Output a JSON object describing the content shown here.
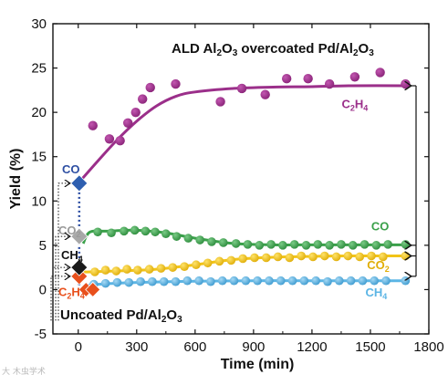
{
  "chart_data": {
    "type": "scatter",
    "title": "ALD Al2O3 overcoated Pd/Al2O3",
    "subtitle": "Uncoated Pd/Al2O3",
    "xlabel": "Time (min)",
    "ylabel": "Yield (%)",
    "xlim": [
      -130,
      1800
    ],
    "ylim": [
      -5,
      30
    ],
    "xticks": [
      0,
      300,
      600,
      900,
      1200,
      1500,
      1800
    ],
    "yticks": [
      -5,
      0,
      5,
      10,
      15,
      20,
      25,
      30
    ],
    "grid": false,
    "legend": "none",
    "series": [
      {
        "name": "C2H4",
        "label_parts": [
          "C",
          "2",
          "H",
          "4"
        ],
        "color": "#9B2F8A",
        "x": [
          75,
          160,
          215,
          255,
          295,
          330,
          370,
          500,
          730,
          840,
          960,
          1070,
          1180,
          1290,
          1420,
          1550,
          1680
        ],
        "y": [
          18.5,
          17,
          16.8,
          18.8,
          20,
          21.5,
          22.8,
          23.2,
          21.2,
          22.7,
          22,
          23.8,
          23.8,
          23.2,
          24,
          24.5,
          23.2
        ],
        "fit_x": [
          0,
          100,
          200,
          300,
          400,
          500,
          600,
          800,
          1000,
          1200,
          1400,
          1700
        ],
        "fit_y": [
          12,
          14.5,
          16.9,
          19,
          20.7,
          21.8,
          22.3,
          22.7,
          22.85,
          22.9,
          23,
          23
        ]
      },
      {
        "name": "CO",
        "label_parts": [
          "CO"
        ],
        "color": "#3AA04A",
        "x": [
          100,
          170,
          235,
          290,
          345,
          395,
          450,
          505,
          565,
          625,
          685,
          745,
          810,
          870,
          930,
          990,
          1050,
          1110,
          1170,
          1230,
          1290,
          1350,
          1410,
          1470,
          1530,
          1590,
          1680
        ],
        "y": [
          6.5,
          6.4,
          6.6,
          6.7,
          6.6,
          6.5,
          6.3,
          6.0,
          5.8,
          5.6,
          5.4,
          5.3,
          5.2,
          5.1,
          5.0,
          5.1,
          5.0,
          5.1,
          5.0,
          5.1,
          5.0,
          5.1,
          5.0,
          5.1,
          5.0,
          5.1,
          5.1
        ],
        "fit_x": [
          25,
          60,
          150,
          300,
          450,
          600,
          800,
          1000,
          1200,
          1400,
          1700
        ],
        "fit_y": [
          5.2,
          6.5,
          6.6,
          6.7,
          6.4,
          5.8,
          5.2,
          5.05,
          5.05,
          5.05,
          5.05
        ]
      },
      {
        "name": "CO2",
        "label_parts": [
          "CO",
          "2"
        ],
        "color": "#F2C417",
        "x": [
          85,
          140,
          195,
          250,
          305,
          365,
          425,
          485,
          545,
          605,
          665,
          725,
          785,
          845,
          905,
          965,
          1025,
          1085,
          1145,
          1205,
          1265,
          1325,
          1385,
          1445,
          1505,
          1565,
          1680
        ],
        "y": [
          2.0,
          2.2,
          2.1,
          2.3,
          2.2,
          2.3,
          2.4,
          2.5,
          2.6,
          2.8,
          3.0,
          3.2,
          3.3,
          3.5,
          3.6,
          3.6,
          3.7,
          3.6,
          3.8,
          3.7,
          3.8,
          3.7,
          3.8,
          3.7,
          3.8,
          3.7,
          3.8
        ],
        "fit_x": [
          25,
          60,
          200,
          400,
          600,
          800,
          1000,
          1200,
          1400,
          1700
        ],
        "fit_y": [
          2.0,
          2.0,
          2.1,
          2.3,
          2.8,
          3.4,
          3.65,
          3.75,
          3.8,
          3.8
        ]
      },
      {
        "name": "CH4",
        "label_parts": [
          "CH",
          "4"
        ],
        "color": "#5BB5E5",
        "x": [
          80,
          140,
          200,
          260,
          320,
          380,
          440,
          500,
          560,
          620,
          680,
          740,
          800,
          860,
          920,
          980,
          1040,
          1100,
          1160,
          1220,
          1280,
          1340,
          1400,
          1460,
          1520,
          1580,
          1680
        ],
        "y": [
          0.6,
          0.7,
          0.8,
          0.8,
          0.9,
          0.9,
          0.9,
          0.9,
          1.0,
          1.0,
          0.9,
          1.0,
          1.0,
          1.0,
          1.0,
          1.0,
          1.0,
          1.0,
          1.0,
          1.0,
          0.9,
          1.0,
          1.0,
          1.0,
          1.0,
          1.0,
          1.0
        ],
        "fit_x": [
          25,
          100,
          300,
          600,
          900,
          1200,
          1700
        ],
        "fit_y": [
          0.4,
          0.6,
          0.8,
          0.95,
          1.0,
          1.0,
          1.0
        ]
      }
    ],
    "uncoated": {
      "points": [
        {
          "name": "CO",
          "label_parts": [
            "CO"
          ],
          "x": 5,
          "y": 12,
          "color": "#2E5FB0",
          "label_color": "#2E4FA3"
        },
        {
          "name": "CO2",
          "label_parts": [
            "CO",
            "2"
          ],
          "x": 5,
          "y": 6,
          "color": "#A8A8A8",
          "label_color": "#9A9A9A"
        },
        {
          "name": "CH4",
          "label_parts": [
            "CH",
            "4"
          ],
          "x": 5,
          "y": 2.5,
          "color": "#1A1A1A",
          "label_color": "#111111"
        },
        {
          "name": "C2H4",
          "label_parts": [
            "C",
            "2",
            "H",
            "4"
          ],
          "x": 5,
          "y": 1.5,
          "color": "#E8501C",
          "label_color": "#E8501C"
        }
      ],
      "extra_x": [
        40,
        75
      ],
      "extra_y": [
        0,
        0
      ],
      "extra_color": "#E8501C"
    },
    "fit_labels": {
      "C2H4": {
        "x": 1420,
        "y": 20.5
      },
      "CO": {
        "x": 1550,
        "y": 6.7
      },
      "CO2": {
        "x": 1540,
        "y": 2.3
      },
      "CH4": {
        "x": 1530,
        "y": -0.8
      }
    }
  },
  "texts": {
    "title": "ALD Al2O3 overcoated Pd/Al2O3",
    "subtitle": "Uncoated Pd/Al2O3",
    "xlabel": "Time (min)",
    "ylabel": "Yield (%)",
    "watermark": "大 木虫学术"
  },
  "colors": {
    "axis": "#111111",
    "bracket": "#111111"
  }
}
